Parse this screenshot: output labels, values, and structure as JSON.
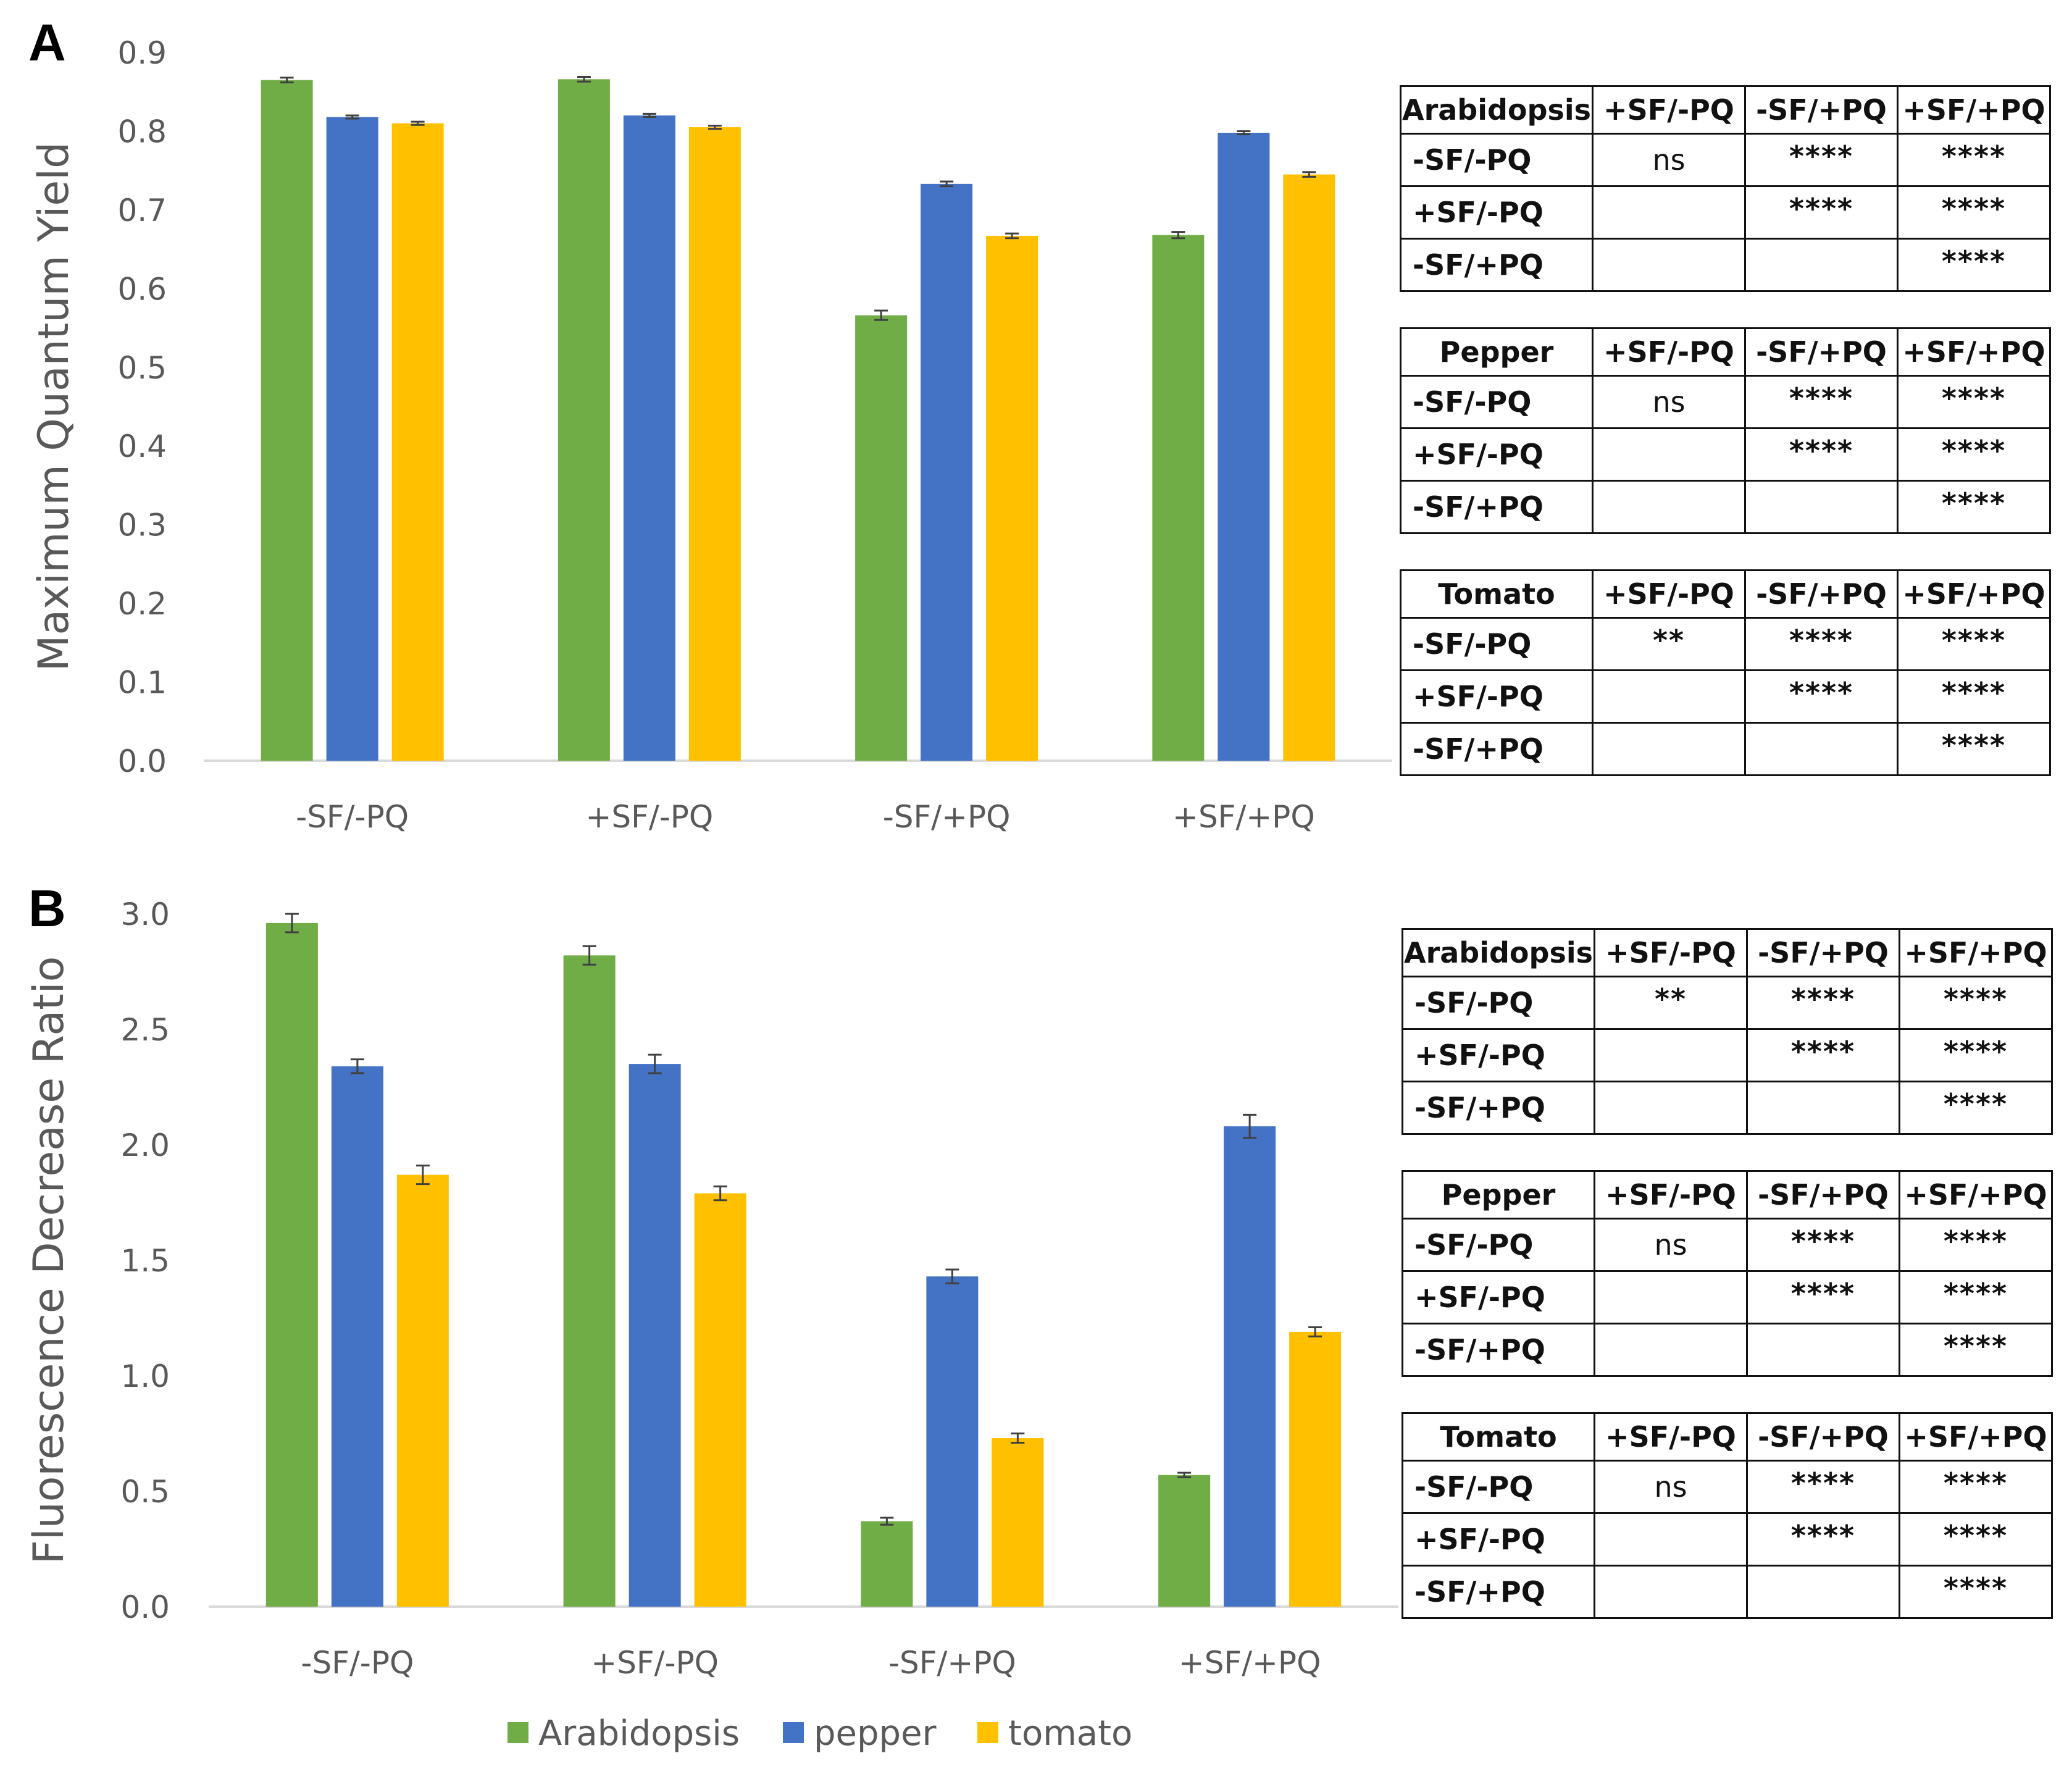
{
  "panels": [
    {
      "letter": "A",
      "chart_data": {
        "type": "bar",
        "ylabel": "Maximum Quantum Yield",
        "ylim": [
          0,
          0.9
        ],
        "yticks": [
          "0.0",
          "0.1",
          "0.2",
          "0.3",
          "0.4",
          "0.5",
          "0.6",
          "0.7",
          "0.8",
          "0.9"
        ],
        "categories": [
          "-SF/-PQ",
          "+SF/-PQ",
          "-SF/+PQ",
          "+SF/+PQ"
        ],
        "series": [
          {
            "name": "Arabidopsis",
            "color": "#70ad47",
            "values": [
              0.865,
              0.866,
              0.566,
              0.668
            ],
            "errors": [
              0.003,
              0.003,
              0.006,
              0.004
            ]
          },
          {
            "name": "pepper",
            "color": "#4472c4",
            "values": [
              0.818,
              0.82,
              0.733,
              0.798
            ],
            "errors": [
              0.002,
              0.002,
              0.003,
              0.002
            ]
          },
          {
            "name": "tomato",
            "color": "#ffc000",
            "values": [
              0.81,
              0.805,
              0.667,
              0.745
            ],
            "errors": [
              0.002,
              0.002,
              0.003,
              0.003
            ]
          }
        ]
      },
      "tables": [
        {
          "title": "Arabidopsis",
          "cols": [
            "+SF/-PQ",
            "-SF/+PQ",
            "+SF/+PQ"
          ],
          "rows": [
            {
              "label": "-SF/-PQ",
              "cells": [
                "ns",
                "****",
                "****"
              ]
            },
            {
              "label": "+SF/-PQ",
              "cells": [
                "",
                "****",
                "****"
              ]
            },
            {
              "label": "-SF/+PQ",
              "cells": [
                "",
                "",
                "****"
              ]
            }
          ]
        },
        {
          "title": "Pepper",
          "cols": [
            "+SF/-PQ",
            "-SF/+PQ",
            "+SF/+PQ"
          ],
          "rows": [
            {
              "label": "-SF/-PQ",
              "cells": [
                "ns",
                "****",
                "****"
              ]
            },
            {
              "label": "+SF/-PQ",
              "cells": [
                "",
                "****",
                "****"
              ]
            },
            {
              "label": "-SF/+PQ",
              "cells": [
                "",
                "",
                "****"
              ]
            }
          ]
        },
        {
          "title": "Tomato",
          "cols": [
            "+SF/-PQ",
            "-SF/+PQ",
            "+SF/+PQ"
          ],
          "rows": [
            {
              "label": "-SF/-PQ",
              "cells": [
                "**",
                "****",
                "****"
              ]
            },
            {
              "label": "+SF/-PQ",
              "cells": [
                "",
                "****",
                "****"
              ]
            },
            {
              "label": "-SF/+PQ",
              "cells": [
                "",
                "",
                "****"
              ]
            }
          ]
        }
      ]
    },
    {
      "letter": "B",
      "chart_data": {
        "type": "bar",
        "ylabel": "Fluorescence Decrease Ratio",
        "ylim": [
          0,
          3.0
        ],
        "yticks": [
          "0.0",
          "0.5",
          "1.0",
          "1.5",
          "2.0",
          "2.5",
          "3.0"
        ],
        "categories": [
          "-SF/-PQ",
          "+SF/-PQ",
          "-SF/+PQ",
          "+SF/+PQ"
        ],
        "series": [
          {
            "name": "Arabidopsis",
            "color": "#70ad47",
            "values": [
              2.96,
              2.82,
              0.37,
              0.57
            ],
            "errors": [
              0.04,
              0.04,
              0.015,
              0.01
            ]
          },
          {
            "name": "pepper",
            "color": "#4472c4",
            "values": [
              2.34,
              2.35,
              1.43,
              2.08
            ],
            "errors": [
              0.03,
              0.04,
              0.03,
              0.05
            ]
          },
          {
            "name": "tomato",
            "color": "#ffc000",
            "values": [
              1.87,
              1.79,
              0.73,
              1.19
            ],
            "errors": [
              0.04,
              0.03,
              0.02,
              0.02
            ]
          }
        ]
      },
      "tables": [
        {
          "title": "Arabidopsis",
          "cols": [
            "+SF/-PQ",
            "-SF/+PQ",
            "+SF/+PQ"
          ],
          "rows": [
            {
              "label": "-SF/-PQ",
              "cells": [
                "**",
                "****",
                "****"
              ]
            },
            {
              "label": "+SF/-PQ",
              "cells": [
                "",
                "****",
                "****"
              ]
            },
            {
              "label": "-SF/+PQ",
              "cells": [
                "",
                "",
                "****"
              ]
            }
          ]
        },
        {
          "title": "Pepper",
          "cols": [
            "+SF/-PQ",
            "-SF/+PQ",
            "+SF/+PQ"
          ],
          "rows": [
            {
              "label": "-SF/-PQ",
              "cells": [
                "ns",
                "****",
                "****"
              ]
            },
            {
              "label": "+SF/-PQ",
              "cells": [
                "",
                "****",
                "****"
              ]
            },
            {
              "label": "-SF/+PQ",
              "cells": [
                "",
                "",
                "****"
              ]
            }
          ]
        },
        {
          "title": "Tomato",
          "cols": [
            "+SF/-PQ",
            "-SF/+PQ",
            "+SF/+PQ"
          ],
          "rows": [
            {
              "label": "-SF/-PQ",
              "cells": [
                "ns",
                "****",
                "****"
              ]
            },
            {
              "label": "+SF/-PQ",
              "cells": [
                "",
                "****",
                "****"
              ]
            },
            {
              "label": "-SF/+PQ",
              "cells": [
                "",
                "",
                "****"
              ]
            }
          ]
        }
      ]
    }
  ],
  "legend": [
    {
      "label": "Arabidopsis",
      "color": "#70ad47"
    },
    {
      "label": "pepper",
      "color": "#4472c4"
    },
    {
      "label": "tomato",
      "color": "#ffc000"
    }
  ]
}
